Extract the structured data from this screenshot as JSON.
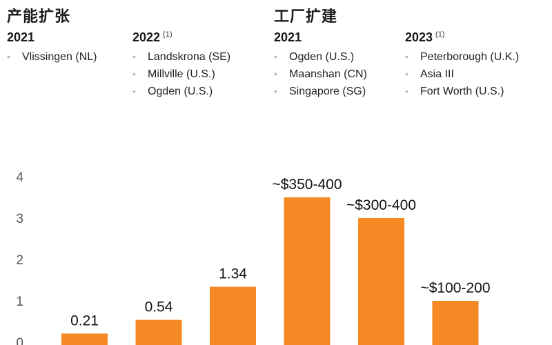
{
  "capacity": {
    "title": "产能扩张",
    "groups": [
      {
        "year": "2021",
        "note": "",
        "items": [
          "Vlissingen (NL)"
        ]
      },
      {
        "year": "2022",
        "note": "(1)",
        "items": [
          "Landskrona (SE)",
          "Millville (U.S.)",
          "Ogden (U.S.)"
        ]
      }
    ]
  },
  "plants": {
    "title": "工厂扩建",
    "groups": [
      {
        "year": "2021",
        "note": "",
        "items": [
          "Ogden (U.S.)",
          "Maanshan (CN)",
          "Singapore (SG)"
        ]
      },
      {
        "year": "2023",
        "note": "(1)",
        "items": [
          "Peterborough (U.K.)",
          "Asia III",
          "Fort Worth (U.S.)"
        ]
      }
    ]
  },
  "colors": {
    "bar": "#F58A24",
    "axis_text": "#555555",
    "bullet": "#b8b8b8"
  },
  "chart_data": {
    "type": "bar",
    "categories": [
      "",
      "",
      "",
      "",
      "",
      ""
    ],
    "values": [
      0.21,
      0.54,
      1.34,
      3.5,
      3.0,
      1.0
    ],
    "data_labels": [
      "0.21",
      "0.54",
      "1.34",
      "~$350-400",
      "~$300-400",
      "~$100-200"
    ],
    "y_ticks": [
      "0",
      "1",
      "2",
      "3",
      "4"
    ],
    "ylim": [
      0,
      4.4
    ],
    "title": "",
    "xlabel": "",
    "ylabel": "",
    "grid": false
  }
}
